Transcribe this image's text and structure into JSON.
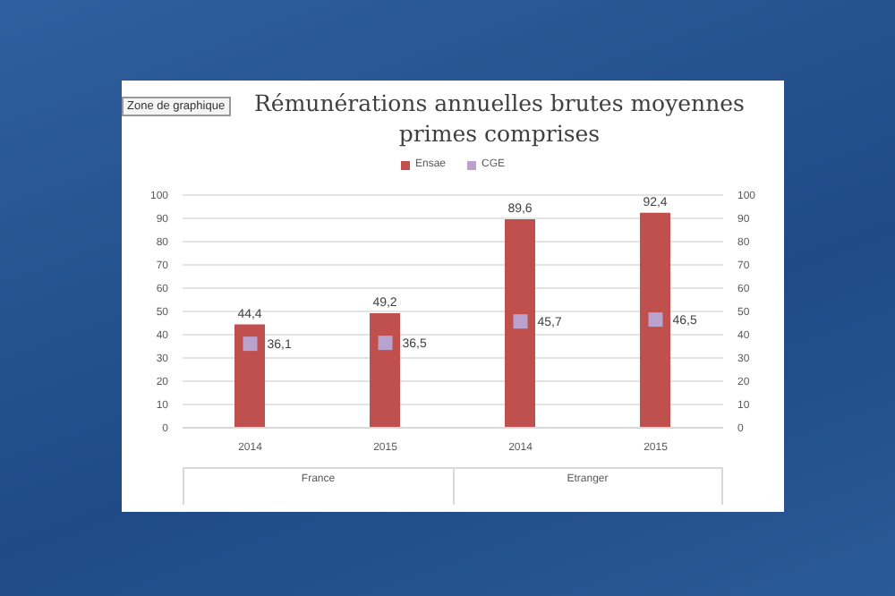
{
  "chart_data": {
    "type": "bar",
    "title": "Rémunérations annuelles brutes moyennes primes comprises",
    "categories": [
      "2014",
      "2015",
      "2014",
      "2015"
    ],
    "series": [
      {
        "name": "Ensae",
        "color": "#c0504d",
        "values": [
          44.4,
          49.2,
          89.6,
          92.4
        ],
        "value_labels": [
          "44,4",
          "49,2",
          "89,6",
          "92,4"
        ]
      },
      {
        "name": "CGE",
        "type": "scatter",
        "color": "#b9a3cc",
        "values": [
          36.1,
          36.5,
          45.7,
          46.5
        ],
        "value_labels": [
          "36,1",
          "36,5",
          "45,7",
          "46,5"
        ]
      }
    ],
    "ylim": [
      0,
      100
    ],
    "yticks": [
      0,
      10,
      20,
      30,
      40,
      50,
      60,
      70,
      80,
      90,
      100
    ],
    "y2lim": [
      0,
      100
    ],
    "y2ticks": [
      0,
      10,
      20,
      30,
      40,
      50,
      60,
      70,
      80,
      90,
      100
    ],
    "grid": "y",
    "legend": "top",
    "marker": "square",
    "annotations": [
      "Zone de graphique",
      "France",
      "Etranger"
    ]
  }
}
